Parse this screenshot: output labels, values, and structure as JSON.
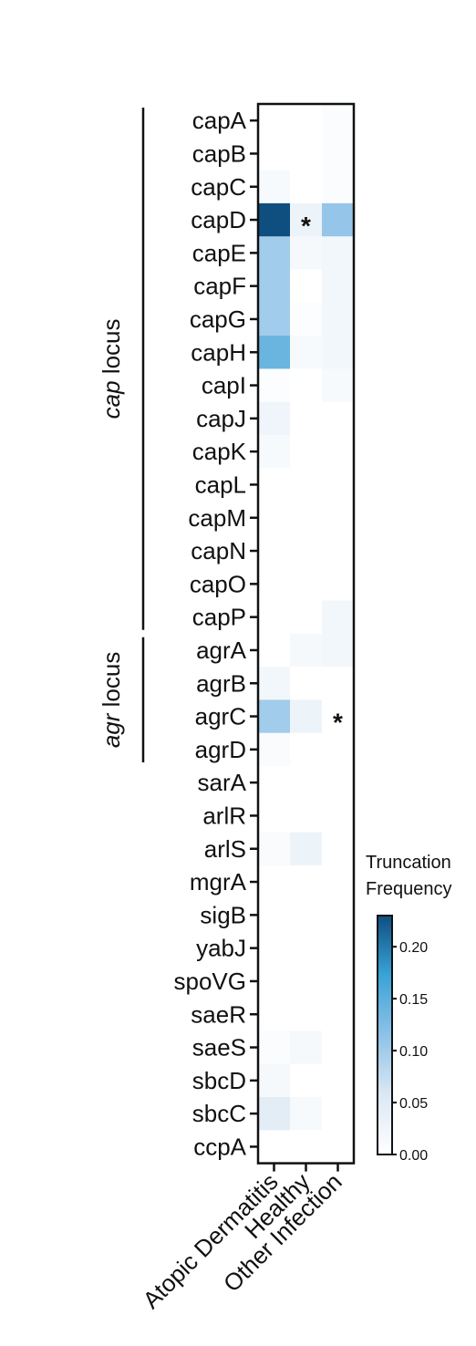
{
  "chart_data": {
    "type": "heatmap",
    "rows": [
      "capA",
      "capB",
      "capC",
      "capD",
      "capE",
      "capF",
      "capG",
      "capH",
      "capI",
      "capJ",
      "capK",
      "capL",
      "capM",
      "capN",
      "capO",
      "capP",
      "agrA",
      "agrB",
      "agrC",
      "agrD",
      "sarA",
      "arlR",
      "arlS",
      "mgrA",
      "sigB",
      "yabJ",
      "spoVG",
      "saeR",
      "saeS",
      "sbcD",
      "sbcC",
      "ccpA"
    ],
    "columns": [
      "Atopic Dermatitis",
      "Healthy",
      "Other Infection"
    ],
    "values": [
      [
        0.0,
        0.0,
        0.008
      ],
      [
        0.0,
        0.0,
        0.008
      ],
      [
        0.012,
        0.0,
        0.008
      ],
      [
        0.23,
        0.03,
        0.11
      ],
      [
        0.1,
        0.015,
        0.02
      ],
      [
        0.1,
        0.0,
        0.02
      ],
      [
        0.1,
        0.005,
        0.02
      ],
      [
        0.14,
        0.012,
        0.02
      ],
      [
        0.006,
        0.0,
        0.012
      ],
      [
        0.025,
        0.0,
        0.0
      ],
      [
        0.012,
        0.0,
        0.0
      ],
      [
        0.0,
        0.0,
        0.0
      ],
      [
        0.0,
        0.0,
        0.0
      ],
      [
        0.0,
        0.0,
        0.0
      ],
      [
        0.0,
        0.0,
        0.0
      ],
      [
        0.0,
        0.0,
        0.02
      ],
      [
        0.0,
        0.015,
        0.02
      ],
      [
        0.02,
        0.0,
        0.0
      ],
      [
        0.1,
        0.03,
        0.0
      ],
      [
        0.01,
        0.0,
        0.0
      ],
      [
        0.0,
        0.0,
        0.0
      ],
      [
        0.0,
        0.0,
        0.0
      ],
      [
        0.01,
        0.03,
        0.0
      ],
      [
        0.0,
        0.0,
        0.0
      ],
      [
        0.0,
        0.0,
        0.0
      ],
      [
        0.0,
        0.0,
        0.0
      ],
      [
        0.0,
        0.0,
        0.0
      ],
      [
        0.0,
        0.0,
        0.0
      ],
      [
        0.008,
        0.015,
        0.0
      ],
      [
        0.015,
        0.0,
        0.0
      ],
      [
        0.045,
        0.012,
        0.0
      ],
      [
        0.0,
        0.0,
        0.0
      ]
    ],
    "annotations": [
      {
        "row": "capD",
        "column": "Healthy",
        "text": "*"
      },
      {
        "row": "agrC",
        "column": "Other Infection",
        "text": "*"
      }
    ],
    "groups": [
      {
        "label_italic": "cap",
        "label_rest": " locus",
        "from": "capA",
        "to": "capP"
      },
      {
        "label_italic": "agr",
        "label_rest": " locus",
        "from": "agrA",
        "to": "agrD"
      }
    ],
    "colorbar": {
      "title_line1": "Truncation",
      "title_line2": "Frequency",
      "min": 0.0,
      "max": 0.23,
      "ticks": [
        "0.00",
        "0.05",
        "0.10",
        "0.15",
        "0.20"
      ],
      "tick_values": [
        0.0,
        0.05,
        0.1,
        0.15,
        0.2
      ],
      "colors": [
        "#ffffff",
        "#dbe8f4",
        "#8ec2e8",
        "#3aa3d6",
        "#0e4f80"
      ]
    },
    "grid": false
  }
}
